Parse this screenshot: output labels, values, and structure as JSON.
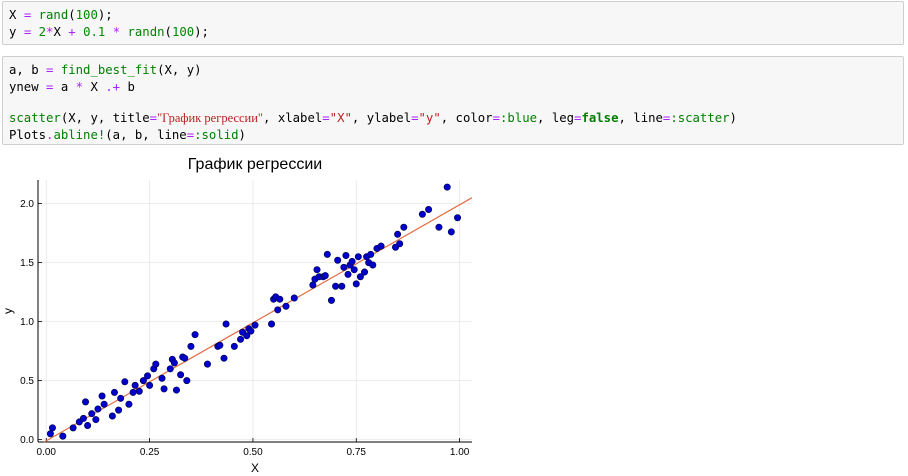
{
  "cells": [
    {
      "lines": [
        [
          {
            "t": "X ",
            "c": "v"
          },
          {
            "t": "=",
            "c": "op"
          },
          {
            "t": " ",
            "c": "v"
          },
          {
            "t": "rand",
            "c": "fn"
          },
          {
            "t": "(",
            "c": "v"
          },
          {
            "t": "100",
            "c": "num"
          },
          {
            "t": ");",
            "c": "v"
          }
        ],
        [
          {
            "t": "y ",
            "c": "v"
          },
          {
            "t": "=",
            "c": "op"
          },
          {
            "t": " ",
            "c": "v"
          },
          {
            "t": "2",
            "c": "num"
          },
          {
            "t": "*",
            "c": "op"
          },
          {
            "t": "X ",
            "c": "v"
          },
          {
            "t": "+",
            "c": "op"
          },
          {
            "t": " ",
            "c": "v"
          },
          {
            "t": "0.1",
            "c": "num"
          },
          {
            "t": " ",
            "c": "v"
          },
          {
            "t": "*",
            "c": "op"
          },
          {
            "t": " ",
            "c": "v"
          },
          {
            "t": "randn",
            "c": "fn"
          },
          {
            "t": "(",
            "c": "v"
          },
          {
            "t": "100",
            "c": "num"
          },
          {
            "t": ");",
            "c": "v"
          }
        ]
      ]
    },
    {
      "lines": [
        [
          {
            "t": "a, b ",
            "c": "v"
          },
          {
            "t": "=",
            "c": "op"
          },
          {
            "t": " ",
            "c": "v"
          },
          {
            "t": "find_best_fit",
            "c": "fn"
          },
          {
            "t": "(X, y)",
            "c": "v"
          }
        ],
        [
          {
            "t": "ynew ",
            "c": "v"
          },
          {
            "t": "=",
            "c": "op"
          },
          {
            "t": " a ",
            "c": "v"
          },
          {
            "t": "*",
            "c": "op"
          },
          {
            "t": " X ",
            "c": "v"
          },
          {
            "t": ".+",
            "c": "op"
          },
          {
            "t": " b",
            "c": "v"
          }
        ],
        [],
        [
          {
            "t": "scatter",
            "c": "fn"
          },
          {
            "t": "(X, y, title",
            "c": "v"
          },
          {
            "t": "=",
            "c": "op"
          },
          {
            "t": "\"График регрессии\"",
            "c": "str serif-str"
          },
          {
            "t": ", xlabel",
            "c": "v"
          },
          {
            "t": "=",
            "c": "op"
          },
          {
            "t": "\"X\"",
            "c": "str"
          },
          {
            "t": ", ylabel",
            "c": "v"
          },
          {
            "t": "=",
            "c": "op"
          },
          {
            "t": "\"y\"",
            "c": "str"
          },
          {
            "t": ", color",
            "c": "v"
          },
          {
            "t": "=",
            "c": "op"
          },
          {
            "t": ":blue",
            "c": "sym"
          },
          {
            "t": ", leg",
            "c": "v"
          },
          {
            "t": "=",
            "c": "op"
          },
          {
            "t": "false",
            "c": "lit"
          },
          {
            "t": ", line",
            "c": "v"
          },
          {
            "t": "=",
            "c": "op"
          },
          {
            "t": ":scatter",
            "c": "sym"
          },
          {
            "t": ")",
            "c": "v"
          }
        ],
        [
          {
            "t": "Plots",
            "c": "v"
          },
          {
            "t": ".",
            "c": "op"
          },
          {
            "t": "abline!",
            "c": "fn"
          },
          {
            "t": "(a, b, line",
            "c": "v"
          },
          {
            "t": "=",
            "c": "op"
          },
          {
            "t": ":solid",
            "c": "sym"
          },
          {
            "t": ")",
            "c": "v"
          }
        ]
      ]
    }
  ],
  "chart_data": {
    "type": "scatter",
    "title": "График регрессии",
    "xlabel": "X",
    "ylabel": "y",
    "xlim": [
      -0.02,
      1.03
    ],
    "ylim": [
      -0.02,
      2.2
    ],
    "xticks": [
      0.0,
      0.25,
      0.5,
      0.75,
      1.0
    ],
    "xtick_labels": [
      "0.00",
      "0.25",
      "0.50",
      "0.75",
      "1.00"
    ],
    "yticks": [
      0.0,
      0.5,
      1.0,
      1.5,
      2.0
    ],
    "ytick_labels": [
      "0.0",
      "0.5",
      "1.0",
      "1.5",
      "2.0"
    ],
    "grid": true,
    "legend": false,
    "point_color": "#0000cc",
    "line_color": "#e26f46",
    "fit_line": {
      "a": 2.0,
      "b": -0.01
    },
    "points": [
      [
        0.01,
        0.05
      ],
      [
        0.015,
        0.1
      ],
      [
        0.04,
        0.03
      ],
      [
        0.065,
        0.1
      ],
      [
        0.08,
        0.15
      ],
      [
        0.09,
        0.18
      ],
      [
        0.095,
        0.32
      ],
      [
        0.1,
        0.12
      ],
      [
        0.11,
        0.22
      ],
      [
        0.12,
        0.17
      ],
      [
        0.125,
        0.26
      ],
      [
        0.135,
        0.37
      ],
      [
        0.14,
        0.3
      ],
      [
        0.16,
        0.2
      ],
      [
        0.165,
        0.4
      ],
      [
        0.175,
        0.25
      ],
      [
        0.18,
        0.35
      ],
      [
        0.19,
        0.49
      ],
      [
        0.2,
        0.3
      ],
      [
        0.21,
        0.4
      ],
      [
        0.215,
        0.46
      ],
      [
        0.225,
        0.41
      ],
      [
        0.235,
        0.5
      ],
      [
        0.245,
        0.54
      ],
      [
        0.25,
        0.46
      ],
      [
        0.26,
        0.6
      ],
      [
        0.265,
        0.64
      ],
      [
        0.28,
        0.52
      ],
      [
        0.285,
        0.43
      ],
      [
        0.3,
        0.6
      ],
      [
        0.305,
        0.68
      ],
      [
        0.31,
        0.65
      ],
      [
        0.315,
        0.42
      ],
      [
        0.325,
        0.55
      ],
      [
        0.33,
        0.7
      ],
      [
        0.335,
        0.69
      ],
      [
        0.34,
        0.5
      ],
      [
        0.35,
        0.79
      ],
      [
        0.36,
        0.89
      ],
      [
        0.39,
        0.64
      ],
      [
        0.415,
        0.79
      ],
      [
        0.42,
        0.8
      ],
      [
        0.43,
        0.69
      ],
      [
        0.435,
        0.98
      ],
      [
        0.455,
        0.79
      ],
      [
        0.47,
        0.85
      ],
      [
        0.475,
        0.91
      ],
      [
        0.485,
        0.88
      ],
      [
        0.49,
        0.94
      ],
      [
        0.495,
        0.92
      ],
      [
        0.505,
        0.97
      ],
      [
        0.545,
        0.98
      ],
      [
        0.55,
        1.19
      ],
      [
        0.555,
        1.21
      ],
      [
        0.56,
        1.1
      ],
      [
        0.565,
        1.19
      ],
      [
        0.58,
        1.13
      ],
      [
        0.6,
        1.2
      ],
      [
        0.645,
        1.31
      ],
      [
        0.65,
        1.36
      ],
      [
        0.655,
        1.44
      ],
      [
        0.66,
        1.38
      ],
      [
        0.67,
        1.38
      ],
      [
        0.675,
        1.39
      ],
      [
        0.68,
        1.57
      ],
      [
        0.69,
        1.18
      ],
      [
        0.7,
        1.3
      ],
      [
        0.705,
        1.52
      ],
      [
        0.715,
        1.3
      ],
      [
        0.72,
        1.46
      ],
      [
        0.725,
        1.56
      ],
      [
        0.73,
        1.4
      ],
      [
        0.735,
        1.48
      ],
      [
        0.74,
        1.51
      ],
      [
        0.745,
        1.44
      ],
      [
        0.75,
        1.32
      ],
      [
        0.755,
        1.55
      ],
      [
        0.76,
        1.38
      ],
      [
        0.77,
        1.42
      ],
      [
        0.775,
        1.55
      ],
      [
        0.78,
        1.5
      ],
      [
        0.785,
        1.57
      ],
      [
        0.79,
        1.48
      ],
      [
        0.8,
        1.62
      ],
      [
        0.81,
        1.64
      ],
      [
        0.845,
        1.63
      ],
      [
        0.85,
        1.74
      ],
      [
        0.855,
        1.66
      ],
      [
        0.865,
        1.8
      ],
      [
        0.91,
        1.91
      ],
      [
        0.925,
        1.95
      ],
      [
        0.95,
        1.8
      ],
      [
        0.97,
        2.14
      ],
      [
        0.98,
        1.76
      ],
      [
        0.995,
        1.88
      ]
    ]
  }
}
